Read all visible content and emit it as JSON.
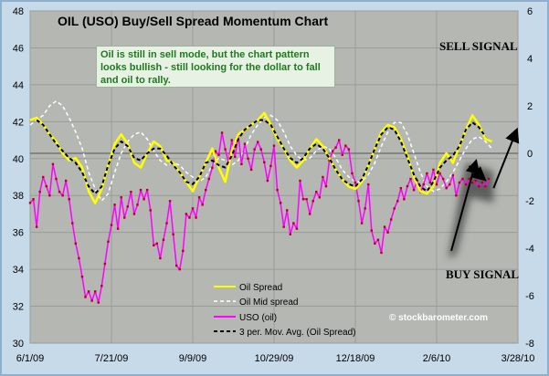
{
  "chart_data": {
    "type": "line",
    "title": "OIL (USO) Buy/Sell Spread Momentum Chart",
    "annotation": "Oil is still in sell mode, but the chart pattern looks bullish - still looking for the dollar to fall and oil to rally.",
    "sell_signal": "SELL SIGNAL",
    "buy_signal": "BUY SIGNAL",
    "watermark": "© stockbarometer.com",
    "x_tick_labels": [
      "6/1/09",
      "7/21/09",
      "9/9/09",
      "10/29/09",
      "12/18/09",
      "2/6/10",
      "3/28/10"
    ],
    "x_domain_days": [
      0,
      300
    ],
    "x_tick_days": [
      0,
      50,
      100,
      150,
      200,
      250,
      300
    ],
    "left_axis": {
      "ylim": [
        30,
        48
      ],
      "ticks": [
        30,
        32,
        34,
        36,
        38,
        40,
        42,
        44,
        46,
        48
      ]
    },
    "right_axis": {
      "ylim": [
        -8,
        6
      ],
      "ticks": [
        -8,
        -6,
        -4,
        -2,
        0,
        2,
        4,
        6
      ]
    },
    "legend": [
      "Oil Spread",
      "Oil Mid spread",
      "USO (oil)",
      "3 per. Mov. Avg. (Oil Spread)"
    ],
    "series": [
      {
        "name": "Oil Spread",
        "axis": "right",
        "color": "#ffff00",
        "style": "solid",
        "x": [
          0,
          4,
          8,
          12,
          16,
          20,
          24,
          28,
          32,
          36,
          40,
          44,
          48,
          52,
          56,
          60,
          64,
          68,
          72,
          76,
          80,
          84,
          88,
          92,
          96,
          100,
          104,
          108,
          112,
          116,
          120,
          124,
          128,
          132,
          136,
          140,
          144,
          148,
          152,
          156,
          160,
          164,
          168,
          172,
          176,
          180,
          184,
          188,
          192,
          196,
          200,
          204,
          208,
          212,
          216,
          220,
          224,
          228,
          232,
          236,
          240,
          244,
          248,
          252,
          256,
          260,
          264,
          268,
          272,
          276,
          280,
          284
        ],
        "values": [
          1.4,
          1.5,
          1.2,
          0.8,
          0.5,
          0.0,
          -0.3,
          -0.2,
          -0.6,
          -1.6,
          -2.1,
          -1.5,
          -0.5,
          0.4,
          0.8,
          0.4,
          -0.4,
          -0.6,
          0.0,
          0.5,
          0.3,
          -0.3,
          -0.4,
          -0.8,
          -1.2,
          -1.6,
          -1.0,
          -0.4,
          0.2,
          -0.6,
          -1.2,
          0.1,
          0.8,
          1.0,
          1.2,
          1.4,
          1.7,
          1.2,
          0.6,
          0.2,
          -0.3,
          -0.6,
          -0.3,
          0.2,
          0.6,
          0.3,
          -0.2,
          -0.7,
          -1.1,
          -1.4,
          -1.5,
          -1.2,
          -0.5,
          0.2,
          0.9,
          1.2,
          1.1,
          0.6,
          -0.1,
          -1.0,
          -1.6,
          -1.7,
          -1.4,
          -0.4,
          0.0,
          -0.4,
          0.3,
          1.0,
          1.6,
          1.2,
          0.6,
          0.5
        ]
      },
      {
        "name": "Oil Mid spread",
        "axis": "right",
        "color": "#ffffff",
        "style": "dashed",
        "x": [
          0,
          4,
          8,
          12,
          16,
          20,
          24,
          28,
          32,
          36,
          40,
          44,
          48,
          52,
          56,
          60,
          64,
          68,
          72,
          76,
          80,
          84,
          88,
          92,
          96,
          100,
          104,
          108,
          112,
          116,
          120,
          124,
          128,
          132,
          136,
          140,
          144,
          148,
          152,
          156,
          160,
          164,
          168,
          172,
          176,
          180,
          184,
          188,
          192,
          196,
          200,
          204,
          208,
          212,
          216,
          220,
          224,
          228,
          232,
          236,
          240,
          244,
          248,
          252,
          256,
          260,
          264,
          268,
          272,
          276,
          280,
          284
        ],
        "values": [
          1.2,
          1.4,
          1.6,
          2.0,
          2.2,
          2.0,
          1.5,
          0.9,
          0.2,
          -0.8,
          -1.5,
          -2.0,
          -1.7,
          -0.8,
          0.0,
          0.5,
          0.8,
          0.9,
          0.6,
          0.1,
          -0.3,
          -0.5,
          -0.4,
          -0.5,
          -0.8,
          -1.0,
          -1.2,
          -1.0,
          -0.5,
          -0.2,
          -0.3,
          -0.5,
          -0.3,
          0.2,
          0.8,
          1.2,
          1.5,
          1.6,
          1.4,
          0.9,
          0.3,
          -0.1,
          -0.3,
          -0.2,
          0.1,
          0.3,
          0.2,
          -0.2,
          -0.7,
          -1.0,
          -1.2,
          -1.2,
          -0.9,
          -0.4,
          0.3,
          0.9,
          1.3,
          1.3,
          0.8,
          0.0,
          -0.8,
          -1.4,
          -1.6,
          -1.5,
          -1.2,
          -0.8,
          -0.3,
          0.2,
          0.6,
          0.7,
          0.5,
          0.2
        ]
      },
      {
        "name": "3 per. Mov. Avg. (Oil Spread)",
        "axis": "right",
        "color": "#000000",
        "style": "dashed",
        "x": [
          4,
          8,
          12,
          16,
          20,
          24,
          28,
          32,
          36,
          40,
          44,
          48,
          52,
          56,
          60,
          64,
          68,
          72,
          76,
          80,
          84,
          88,
          92,
          96,
          100,
          104,
          108,
          112,
          116,
          120,
          124,
          128,
          132,
          136,
          140,
          144,
          148,
          152,
          156,
          160,
          164,
          168,
          172,
          176,
          180,
          184,
          188,
          192,
          196,
          200,
          204,
          208,
          212,
          216,
          220,
          224,
          228,
          232,
          236,
          240,
          244,
          248,
          252,
          256,
          260,
          264,
          268,
          272,
          276,
          280
        ],
        "values": [
          1.4,
          1.2,
          0.8,
          0.4,
          0.1,
          -0.2,
          -0.4,
          -0.8,
          -1.4,
          -1.7,
          -1.4,
          -0.5,
          0.2,
          0.5,
          0.3,
          -0.2,
          -0.3,
          0.0,
          0.2,
          0.2,
          -0.1,
          -0.5,
          -0.8,
          -1.2,
          -1.3,
          -1.0,
          -0.4,
          -0.3,
          -0.5,
          -0.6,
          -0.1,
          0.6,
          1.0,
          1.2,
          1.4,
          1.4,
          1.2,
          0.7,
          0.2,
          -0.2,
          -0.4,
          -0.2,
          0.2,
          0.4,
          0.2,
          -0.2,
          -0.7,
          -1.1,
          -1.3,
          -1.4,
          -1.1,
          -0.5,
          0.2,
          0.8,
          1.1,
          1.0,
          0.5,
          -0.2,
          -0.9,
          -1.4,
          -1.6,
          -1.2,
          -0.6,
          -0.3,
          -0.1,
          0.3,
          1.0,
          1.3,
          1.1,
          0.7
        ]
      },
      {
        "name": "USO (oil)",
        "axis": "left",
        "color": "#ff00ff",
        "style": "solid-markers",
        "x": [
          0,
          2,
          4,
          6,
          8,
          10,
          12,
          14,
          16,
          18,
          20,
          22,
          24,
          26,
          28,
          30,
          32,
          34,
          36,
          38,
          40,
          42,
          44,
          46,
          48,
          50,
          52,
          54,
          56,
          58,
          60,
          62,
          64,
          66,
          68,
          70,
          72,
          74,
          76,
          78,
          80,
          82,
          84,
          86,
          88,
          90,
          92,
          94,
          96,
          98,
          100,
          102,
          104,
          106,
          108,
          110,
          112,
          114,
          116,
          118,
          120,
          122,
          124,
          126,
          128,
          130,
          132,
          134,
          136,
          138,
          140,
          142,
          144,
          146,
          148,
          150,
          152,
          154,
          156,
          158,
          160,
          162,
          164,
          166,
          168,
          170,
          172,
          174,
          176,
          178,
          180,
          182,
          184,
          186,
          188,
          190,
          192,
          194,
          196,
          198,
          200,
          202,
          204,
          206,
          208,
          210,
          212,
          214,
          216,
          218,
          220,
          222,
          224,
          226,
          228,
          230,
          232,
          234,
          236,
          238,
          240,
          242,
          244,
          246,
          248,
          250,
          252,
          254,
          256,
          258,
          260,
          262,
          264,
          266,
          268,
          270,
          272,
          274,
          276,
          278,
          280,
          282
        ],
        "values": [
          37.6,
          37.8,
          36.3,
          38.2,
          39.0,
          38.5,
          38.0,
          39.7,
          38.9,
          38.2,
          38.0,
          38.8,
          37.8,
          36.5,
          35.4,
          34.6,
          33.6,
          32.5,
          32.8,
          32.3,
          32.8,
          32.2,
          33.1,
          34.3,
          35.5,
          36.4,
          37.5,
          36.2,
          37.9,
          36.8,
          37.4,
          38.2,
          37.0,
          37.5,
          38.3,
          37.8,
          38.3,
          37.2,
          35.3,
          35.4,
          34.6,
          35.6,
          36.5,
          37.7,
          35.9,
          34.2,
          34.0,
          35.0,
          37.0,
          36.8,
          37.3,
          36.8,
          37.9,
          37.5,
          38.3,
          38.9,
          39.5,
          40.4,
          40.2,
          41.4,
          40.5,
          39.8,
          41.0,
          40.1,
          41.3,
          39.7,
          40.8,
          40.0,
          39.4,
          40.5,
          40.9,
          40.5,
          39.8,
          38.8,
          39.6,
          40.7,
          38.3,
          37.6,
          36.3,
          37.2,
          35.9,
          36.5,
          36.2,
          38.8,
          37.8,
          37.8,
          37.0,
          37.7,
          38.2,
          37.9,
          39.0,
          38.5,
          39.9,
          40.4,
          40.6,
          41.0,
          40.2,
          40.7,
          40.5,
          39.2,
          38.7,
          37.7,
          36.5,
          37.3,
          38.6,
          36.1,
          35.4,
          35.6,
          34.9,
          36.3,
          36.0,
          36.7,
          37.3,
          37.7,
          38.4,
          37.8,
          38.5,
          38.9,
          38.3,
          38.8,
          38.2,
          38.6,
          39.2,
          38.7,
          39.4,
          38.6,
          39.2,
          38.9,
          38.4,
          38.6,
          39.1,
          38.0,
          38.7,
          38.9,
          38.6,
          38.9,
          38.7,
          38.8,
          38.5,
          38.7,
          38.5,
          38.9
        ]
      }
    ],
    "arrows": [
      {
        "from": [
          259,
          35.0
        ],
        "to": [
          274,
          39.8
        ]
      },
      {
        "from": [
          270,
          39.6
        ],
        "to": [
          279,
          38.9
        ]
      },
      {
        "from": [
          285,
          38.4
        ],
        "to": [
          299,
          41.5
        ]
      }
    ]
  }
}
